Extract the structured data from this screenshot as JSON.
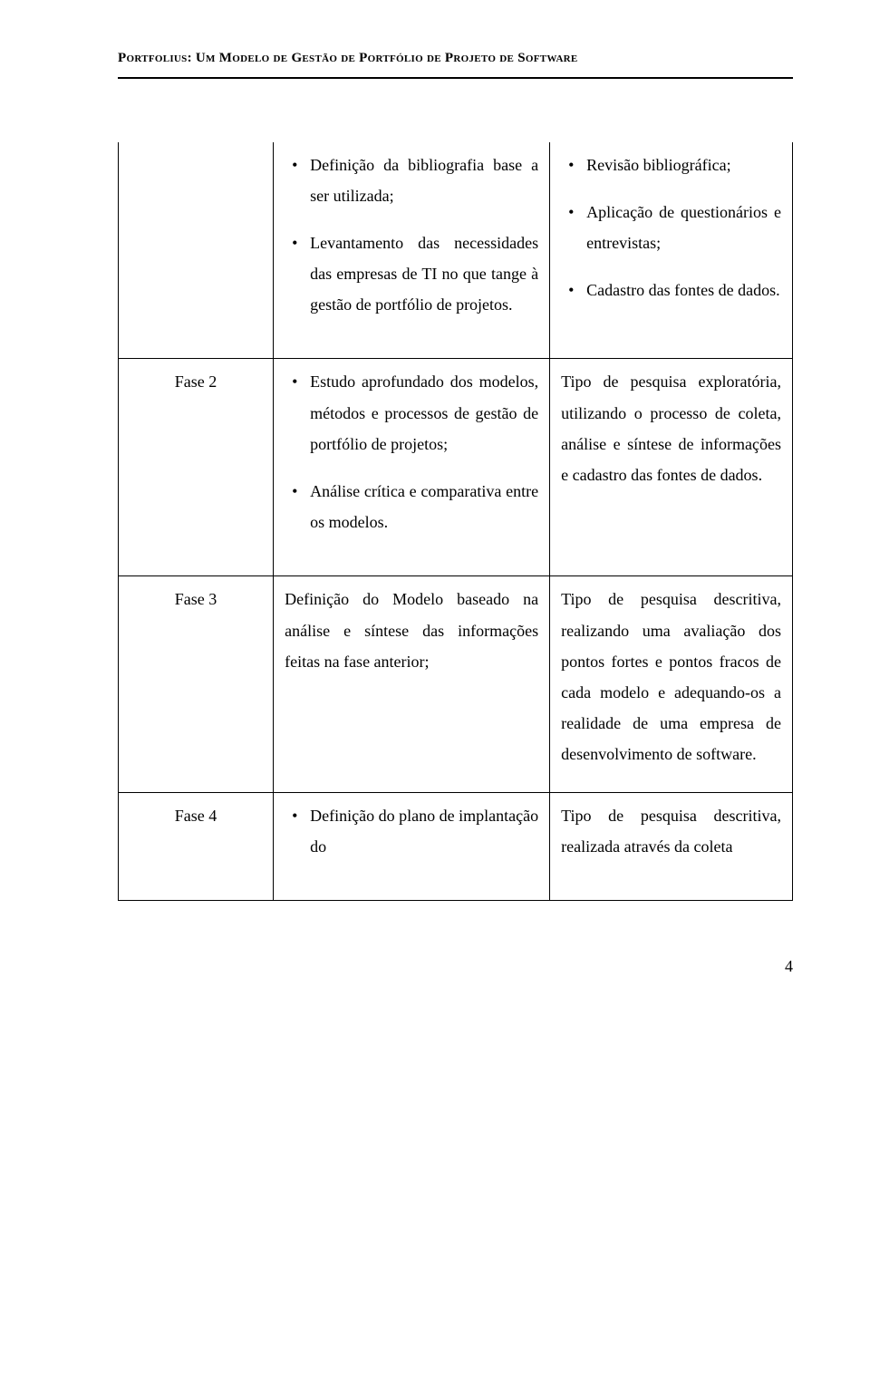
{
  "header": {
    "title": "Portfolius: Um Modelo de Gestão de Portfólio de Projeto de Software"
  },
  "table": {
    "rows": [
      {
        "col1": "",
        "col2_items": [
          "Definição da bibliografia base a ser utilizada;",
          "Levantamento das necessidades das empresas de TI no que tange à gestão de portfólio de projetos."
        ],
        "col3_items": [
          "Revisão bibliográfica;",
          "Aplicação de questionários e entrevistas;",
          "Cadastro das fontes de dados."
        ]
      },
      {
        "col1": "Fase 2",
        "col2_items": [
          "Estudo aprofundado dos modelos, métodos e processos de gestão de portfólio de projetos;",
          "Análise crítica e comparativa entre os modelos."
        ],
        "col3_text": "Tipo de pesquisa exploratória, utilizando o processo de coleta, análise e síntese de informações e cadastro das fontes de dados."
      },
      {
        "col1": "Fase 3",
        "col2_text": "Definição do Modelo baseado na análise e síntese das informações feitas na fase anterior;",
        "col3_text": "Tipo de pesquisa descritiva, realizando uma avaliação dos pontos fortes e pontos fracos de cada modelo e adequando-os a realidade de uma empresa de desenvolvimento de software."
      },
      {
        "col1": "Fase 4",
        "col2_items": [
          "Definição do plano de implantação do"
        ],
        "col3_text": "Tipo de pesquisa descritiva, realizada através da coleta"
      }
    ]
  },
  "page_number": "4"
}
